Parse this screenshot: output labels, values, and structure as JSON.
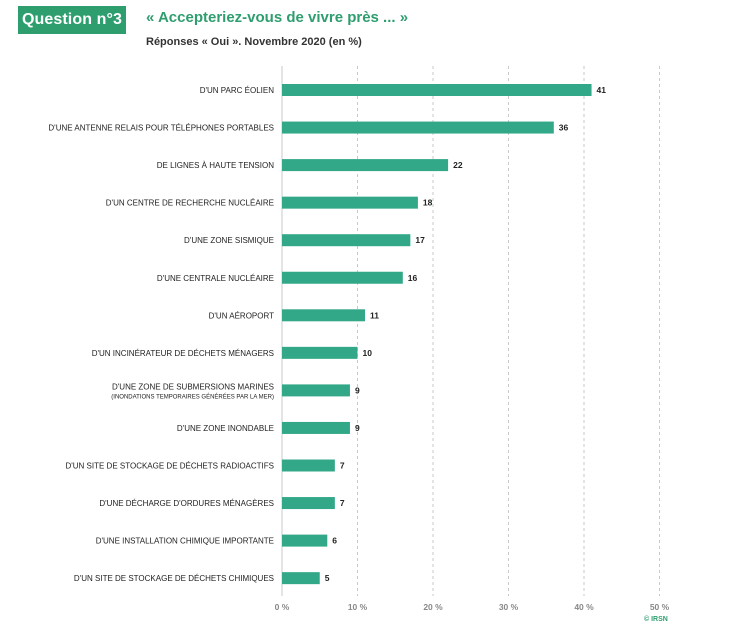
{
  "header": {
    "badge": "Question n°3",
    "title": "« Accepteriez-vous de vivre près ... »",
    "subtitle": "Réponses « Oui ». Novembre 2020 (en %)"
  },
  "colors": {
    "accent": "#2e9e6f",
    "bar": "#33a889",
    "grid": "#c8c8c8"
  },
  "chart_data": {
    "type": "bar",
    "orientation": "horizontal",
    "title": "« Accepteriez-vous de vivre près ... »",
    "subtitle": "Réponses « Oui ». Novembre 2020 (en %)",
    "xlabel": "",
    "ylabel": "",
    "xlim": [
      0,
      50
    ],
    "ticks": [
      0,
      10,
      20,
      30,
      40,
      50
    ],
    "tick_labels": [
      "0 %",
      "10 %",
      "20 %",
      "30 %",
      "40 %",
      "50 %"
    ],
    "grid": true,
    "categories": [
      "D'UN PARC ÉOLIEN",
      "D'UNE ANTENNE RELAIS POUR TÉLÉPHONES PORTABLES",
      "DE LIGNES À HAUTE TENSION",
      "D'UN CENTRE DE RECHERCHE NUCLÉAIRE",
      "D'UNE ZONE SISMIQUE",
      "D'UNE CENTRALE NUCLÉAIRE",
      "D'UN AÉROPORT",
      "D'UN INCINÉRATEUR DE DÉCHETS MÉNAGERS",
      "D'UNE ZONE DE SUBMERSIONS MARINES",
      "D'UNE ZONE INONDABLE",
      "D'UN SITE DE STOCKAGE DE DÉCHETS RADIOACTIFS",
      "D'UNE DÉCHARGE D'ORDURES MÉNAGÈRES",
      "D'UNE INSTALLATION CHIMIQUE IMPORTANTE",
      "D'UN SITE DE STOCKAGE DE DÉCHETS CHIMIQUES"
    ],
    "category_notes": [
      "",
      "",
      "",
      "",
      "",
      "",
      "",
      "",
      "(INONDATIONS TEMPORAIRES GÉNÉRÉES PAR LA MER)",
      "",
      "",
      "",
      "",
      ""
    ],
    "values": [
      41,
      36,
      22,
      18,
      17,
      16,
      11,
      10,
      9,
      9,
      7,
      7,
      6,
      5
    ]
  },
  "footer": {
    "credit": "© IRSN"
  }
}
